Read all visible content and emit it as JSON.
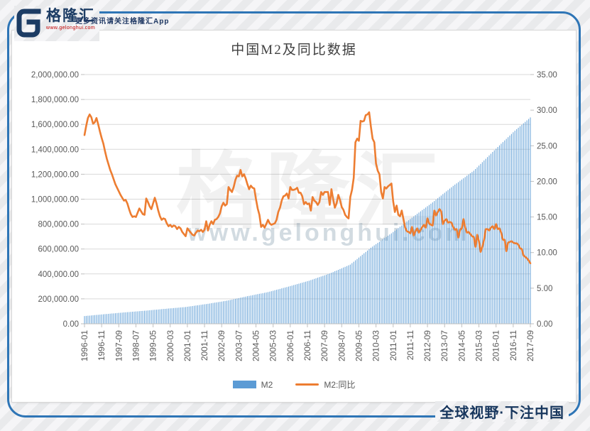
{
  "header": {
    "brand": "格隆汇",
    "url": "www.gelonghui.com",
    "tagline": "更多资讯请关注格隆汇App"
  },
  "footer": {
    "slogan": "全球视野·下注中国"
  },
  "watermark": {
    "brand": "格隆汇",
    "url": "www.gelonghui.com"
  },
  "chart_data": {
    "type": "bar",
    "subtype": "combo bar+line, dual axis",
    "title": "中国M2及同比数据",
    "x_unit": "month",
    "x_start": "1996-01",
    "x_end": "2017-09",
    "grid": true,
    "legend_position": "bottom",
    "x_tick_labels": [
      "1996-01",
      "1996-11",
      "1997-09",
      "1998-07",
      "1999-05",
      "2000-03",
      "2001-01",
      "2001-11",
      "2002-09",
      "2003-07",
      "2004-05",
      "2005-03",
      "2006-01",
      "2006-11",
      "2007-09",
      "2008-07",
      "2009-05",
      "2010-03",
      "2011-01",
      "2011-11",
      "2012-09",
      "2013-07",
      "2014-05",
      "2015-03",
      "2016-01",
      "2016-11",
      "2017-09"
    ],
    "x_tick_every_n_months": 10,
    "left_axis": {
      "min": 0,
      "max": 2000000,
      "step": 200000,
      "decimals": 2
    },
    "right_axis": {
      "min": 0,
      "max": 35,
      "step": 5,
      "decimals": 2
    },
    "series": [
      {
        "name": "M2",
        "type": "bar",
        "axis": "left",
        "color": "#5B9BD5",
        "values": [
          62029,
          63308,
          64587,
          65866,
          67145,
          68424,
          69703,
          70982,
          72261,
          73540,
          74819,
          76095,
          77337,
          78578,
          79820,
          81062,
          82303,
          83545,
          84787,
          86028,
          87270,
          88512,
          89753,
          90995,
          92120,
          93246,
          94371,
          95496,
          96622,
          97747,
          98872,
          99998,
          101123,
          102248,
          103374,
          104499,
          105782,
          107066,
          108349,
          109632,
          110915,
          112199,
          113482,
          114765,
          116048,
          117332,
          118615,
          119898,
          121124,
          122350,
          123576,
          124802,
          126028,
          127254,
          128480,
          129706,
          130932,
          132158,
          133384,
          134610,
          136584,
          138559,
          140533,
          142507,
          144482,
          146456,
          148430,
          150405,
          152379,
          154353,
          156328,
          158302,
          160527,
          162753,
          164978,
          167204,
          169429,
          171655,
          173880,
          176106,
          178331,
          180556,
          182782,
          185007,
          188025,
          191043,
          194061,
          197079,
          200097,
          203115,
          206133,
          209151,
          212169,
          215187,
          218205,
          221223,
          223963,
          226704,
          229444,
          232184,
          234925,
          237665,
          240405,
          243146,
          245886,
          248626,
          251367,
          254107,
          257828,
          261549,
          265269,
          268990,
          272711,
          276432,
          280152,
          283873,
          287594,
          291315,
          295035,
          298756,
          302660,
          306564,
          310468,
          314372,
          318276,
          322180,
          326084,
          329988,
          333892,
          337796,
          341700,
          345604,
          350424,
          355244,
          360063,
          364883,
          369703,
          374523,
          379343,
          384162,
          388982,
          393802,
          398622,
          403442,
          409419,
          415396,
          421373,
          427350,
          433327,
          439304,
          445281,
          451258,
          457235,
          463212,
          469189,
          475167,
          486422,
          497677,
          508931,
          520186,
          531441,
          542696,
          553951,
          565205,
          576460,
          587715,
          598970,
          610225,
          619861,
          629496,
          639132,
          648767,
          658403,
          668038,
          677674,
          687309,
          696945,
          706580,
          716216,
          725852,
          736330,
          746809,
          757287,
          767765,
          778244,
          788722,
          799200,
          809679,
          820157,
          830635,
          841114,
          851591,
          861805,
          872019,
          882233,
          892447,
          902661,
          912875,
          923089,
          933303,
          943517,
          953731,
          963945,
          974159,
          985190,
          996220,
          1007251,
          1018281,
          1029312,
          1040342,
          1051373,
          1062403,
          1073434,
          1084464,
          1095495,
          1106525,
          1116679,
          1126833,
          1136988,
          1147142,
          1157296,
          1167450,
          1177604,
          1187758,
          1197913,
          1208067,
          1218221,
          1228375,
          1242034,
          1255692,
          1269351,
          1283009,
          1296668,
          1310326,
          1323985,
          1337643,
          1351302,
          1364960,
          1378619,
          1392278,
          1405427,
          1418576,
          1431725,
          1444874,
          1458023,
          1471173,
          1484322,
          1497471,
          1510620,
          1523769,
          1536918,
          1550067,
          1561800,
          1573533,
          1585266,
          1597000,
          1608733,
          1620466,
          1632199,
          1643932,
          1655663
        ]
      },
      {
        "name": "M2:同比",
        "type": "line",
        "axis": "right",
        "color": "#ED7D31",
        "values": [
          26.5,
          27.8,
          28.9,
          29.4,
          29.0,
          28.1,
          28.3,
          28.9,
          28.0,
          27.0,
          26.1,
          25.3,
          24.2,
          23.2,
          22.4,
          21.6,
          21.0,
          20.3,
          19.6,
          19.1,
          18.6,
          18.1,
          17.7,
          17.3,
          17.4,
          16.9,
          16.1,
          15.4,
          15.0,
          15.1,
          15.0,
          15.6,
          16.2,
          15.8,
          15.4,
          15.3,
          17.6,
          17.1,
          16.5,
          16.1,
          16.9,
          17.7,
          16.9,
          15.9,
          15.1,
          14.6,
          14.8,
          14.7,
          14.1,
          13.7,
          13.9,
          13.6,
          13.8,
          13.7,
          13.3,
          13.6,
          13.4,
          12.9,
          12.6,
          12.3,
          13.4,
          13.1,
          12.8,
          12.5,
          12.4,
          12.8,
          13.1,
          13.0,
          13.2,
          12.9,
          13.2,
          14.4,
          13.1,
          13.9,
          14.4,
          14.0,
          14.6,
          14.7,
          15.0,
          15.5,
          16.5,
          17.0,
          16.6,
          16.8,
          19.2,
          18.8,
          18.5,
          19.2,
          20.2,
          20.8,
          20.7,
          21.6,
          20.7,
          21.0,
          20.4,
          19.6,
          18.9,
          19.4,
          19.1,
          19.0,
          17.5,
          16.2,
          15.3,
          13.6,
          13.9,
          13.5,
          14.0,
          14.6,
          14.1,
          13.9,
          14.0,
          14.1,
          14.6,
          15.7,
          16.3,
          17.3,
          17.9,
          18.0,
          18.3,
          17.6,
          19.2,
          18.8,
          18.8,
          18.9,
          19.1,
          18.4,
          18.4,
          17.9,
          16.8,
          17.1,
          16.8,
          16.9,
          15.9,
          17.8,
          17.3,
          17.1,
          16.7,
          17.1,
          18.5,
          18.1,
          18.5,
          18.5,
          18.5,
          16.7,
          18.9,
          17.5,
          16.3,
          16.9,
          18.1,
          17.4,
          16.4,
          16.0,
          15.3,
          15.0,
          14.8,
          17.8,
          18.8,
          20.5,
          25.5,
          26.0,
          25.7,
          28.5,
          28.4,
          28.5,
          29.3,
          29.4,
          29.7,
          27.7,
          26.0,
          25.5,
          22.5,
          21.5,
          21.0,
          18.5,
          17.6,
          19.2,
          19.0,
          19.3,
          19.5,
          19.7,
          17.2,
          15.7,
          16.6,
          15.3,
          15.1,
          15.9,
          14.7,
          13.5,
          13.0,
          12.9,
          12.7,
          13.6,
          12.4,
          13.0,
          13.4,
          12.8,
          13.2,
          13.6,
          13.9,
          13.5,
          14.8,
          14.1,
          13.9,
          13.8,
          15.9,
          15.2,
          15.7,
          16.1,
          15.8,
          14.0,
          14.5,
          14.7,
          14.2,
          14.3,
          14.2,
          13.6,
          13.2,
          13.3,
          12.1,
          13.2,
          13.4,
          14.7,
          13.5,
          12.8,
          12.9,
          12.6,
          12.3,
          12.2,
          10.8,
          12.5,
          11.6,
          10.1,
          10.8,
          11.8,
          13.3,
          13.3,
          13.1,
          13.5,
          13.7,
          13.3,
          14.0,
          13.3,
          13.4,
          12.8,
          11.8,
          11.8,
          10.2,
          11.4,
          11.5,
          11.6,
          11.4,
          11.3,
          11.3,
          11.1,
          10.6,
          10.5,
          9.6,
          9.4,
          9.2,
          8.9,
          8.5
        ]
      }
    ]
  }
}
